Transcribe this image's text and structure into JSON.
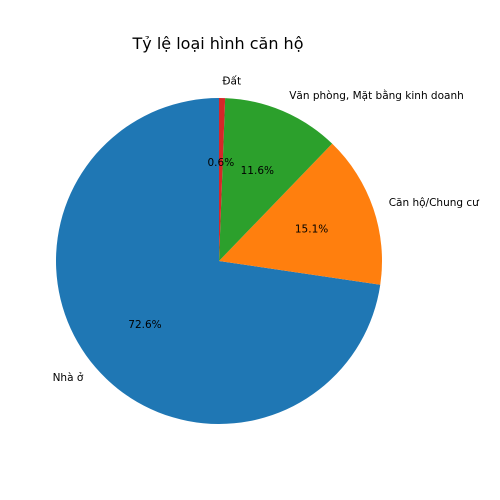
{
  "chart_data": {
    "type": "pie",
    "title": "Tỷ lệ loại hình căn hộ",
    "start_angle": 90,
    "direction": "counterclockwise",
    "slices": [
      {
        "label": "Nhà ở",
        "value": 72.6,
        "pct_label": "72.6%",
        "color": "#1f77b4"
      },
      {
        "label": "Căn hộ/Chung cư",
        "value": 15.1,
        "pct_label": "15.1%",
        "color": "#ff7f0e"
      },
      {
        "label": "Văn phòng, Mặt bằng kinh doanh",
        "value": 11.6,
        "pct_label": "11.6%",
        "color": "#2ca02c"
      },
      {
        "label": "Đất",
        "value": 0.6,
        "pct_label": "0.6%",
        "color": "#d62728"
      }
    ]
  }
}
